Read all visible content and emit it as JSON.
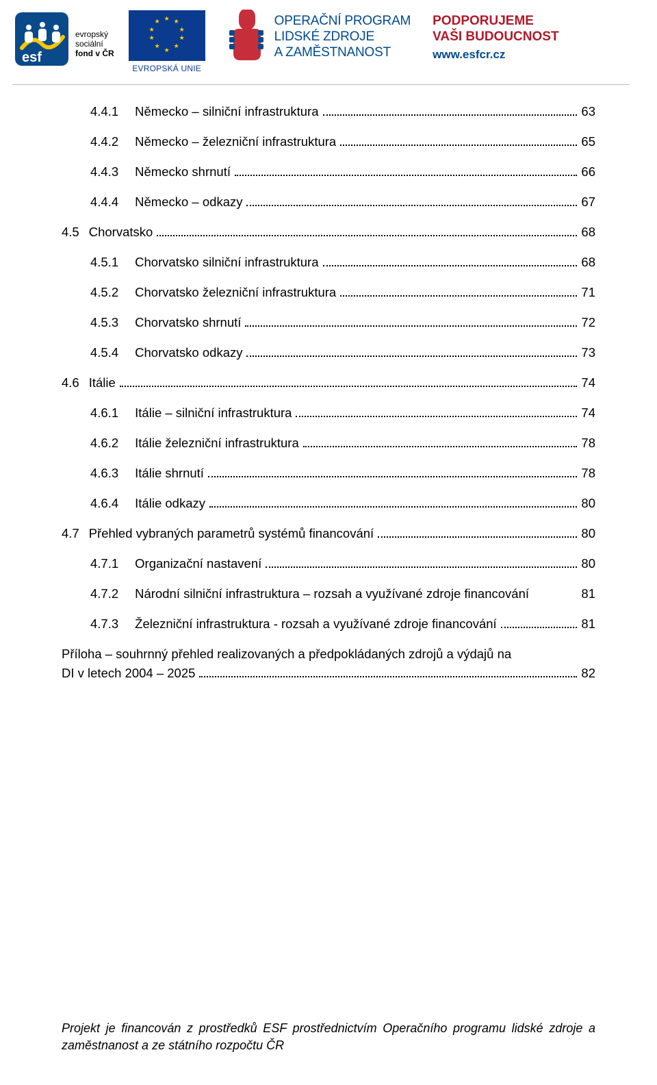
{
  "header": {
    "esf": {
      "line1": "evropský",
      "line2": "sociální",
      "line3": "fond v ČR"
    },
    "eu": {
      "label": "EVROPSKÁ UNIE"
    },
    "oplzz": {
      "l1": "OPERAČNÍ PROGRAM",
      "l2": "LIDSKÉ ZDROJE",
      "l3": "A ZAMĚSTNANOST"
    },
    "support": {
      "l1": "PODPORUJEME",
      "l2": "VAŠI BUDOUCNOST",
      "l3": "www.esfcr.cz"
    }
  },
  "toc": [
    {
      "level": 2,
      "num": "4.4.1",
      "title": "Německo – silniční infrastruktura",
      "page": "63"
    },
    {
      "level": 2,
      "num": "4.4.2",
      "title": "Německo – železniční infrastruktura",
      "page": "65"
    },
    {
      "level": 2,
      "num": "4.4.3",
      "title": "Německo shrnutí",
      "page": "66"
    },
    {
      "level": 2,
      "num": "4.4.4",
      "title": "Německo – odkazy",
      "page": "67"
    },
    {
      "level": 1,
      "num": "4.5",
      "title": "Chorvatsko",
      "page": "68"
    },
    {
      "level": 2,
      "num": "4.5.1",
      "title": "Chorvatsko silniční infrastruktura",
      "page": "68"
    },
    {
      "level": 2,
      "num": "4.5.2",
      "title": "Chorvatsko železniční infrastruktura",
      "page": "71"
    },
    {
      "level": 2,
      "num": "4.5.3",
      "title": "Chorvatsko shrnutí",
      "page": "72"
    },
    {
      "level": 2,
      "num": "4.5.4",
      "title": "Chorvatsko odkazy",
      "page": "73"
    },
    {
      "level": 1,
      "num": "4.6",
      "title": "Itálie",
      "page": "74"
    },
    {
      "level": 2,
      "num": "4.6.1",
      "title": "Itálie – silniční infrastruktura",
      "page": "74"
    },
    {
      "level": 2,
      "num": "4.6.2",
      "title": "Itálie železniční infrastruktura",
      "page": "78"
    },
    {
      "level": 2,
      "num": "4.6.3",
      "title": "Itálie shrnutí",
      "page": "78"
    },
    {
      "level": 2,
      "num": "4.6.4",
      "title": "Itálie odkazy",
      "page": "80"
    },
    {
      "level": 1,
      "num": "4.7",
      "title": "Přehled vybraných parametrů systémů financování",
      "page": "80"
    },
    {
      "level": 2,
      "num": "4.7.1",
      "title": "Organizační nastavení",
      "page": "80"
    },
    {
      "level": 2,
      "num": "4.7.2",
      "title": "Národní silniční infrastruktura – rozsah a využívané zdroje financování",
      "page": "81",
      "nodots": true
    },
    {
      "level": 2,
      "num": "4.7.3",
      "title": "Železniční infrastruktura - rozsah a využívané zdroje financování",
      "page": "81"
    }
  ],
  "appendix": {
    "line1": "Příloha – souhrnný přehled realizovaných a předpokládaných zdrojů a výdajů na",
    "line2": "DI v letech 2004 – 2025",
    "page": "82"
  },
  "footer": {
    "text": "Projekt je financován z prostředků ESF prostřednictvím Operačního programu lidské zdroje a zaměstnanost a ze státního rozpočtu ČR"
  }
}
